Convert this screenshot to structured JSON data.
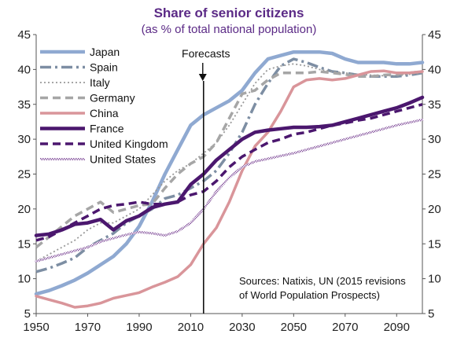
{
  "chart_data": {
    "type": "line",
    "title": "Share of senior citizens",
    "subtitle": "(as % of total national population)",
    "xlabel": "",
    "ylabel": "",
    "xlim": [
      1950,
      2100
    ],
    "ylim": [
      5,
      45
    ],
    "x_ticks": [
      1950,
      1970,
      1990,
      2010,
      2030,
      2050,
      2070,
      2090
    ],
    "y_ticks": [
      5,
      10,
      15,
      20,
      25,
      30,
      35,
      40,
      45
    ],
    "grid": false,
    "legend_position": "top-left",
    "forecast_marker": {
      "label": "Forecasts",
      "x": 2015
    },
    "note_lines": [
      "Sources: Natixis, UN (2015 revisions",
      "of World Population Prospects)"
    ],
    "series": [
      {
        "name": "Japan",
        "color": "#8fa9d1",
        "style": "solid",
        "width": 4.5,
        "points": [
          [
            1950,
            7.8
          ],
          [
            1955,
            8.3
          ],
          [
            1960,
            9
          ],
          [
            1965,
            9.8
          ],
          [
            1970,
            10.8
          ],
          [
            1975,
            12
          ],
          [
            1980,
            13.2
          ],
          [
            1985,
            15
          ],
          [
            1990,
            17.5
          ],
          [
            1995,
            21
          ],
          [
            2000,
            25
          ],
          [
            2005,
            28.5
          ],
          [
            2010,
            32
          ],
          [
            2015,
            33.5
          ],
          [
            2020,
            34.5
          ],
          [
            2025,
            35.5
          ],
          [
            2030,
            37
          ],
          [
            2035,
            39.5
          ],
          [
            2040,
            41.5
          ],
          [
            2045,
            42
          ],
          [
            2050,
            42.5
          ],
          [
            2055,
            42.5
          ],
          [
            2060,
            42.5
          ],
          [
            2065,
            42.3
          ],
          [
            2070,
            41.5
          ],
          [
            2075,
            41
          ],
          [
            2080,
            41
          ],
          [
            2085,
            41
          ],
          [
            2090,
            40.8
          ],
          [
            2095,
            40.8
          ],
          [
            2100,
            41
          ]
        ]
      },
      {
        "name": "Spain",
        "color": "#7d8ea3",
        "style": "dashdot",
        "width": 3.5,
        "points": [
          [
            1950,
            11
          ],
          [
            1955,
            11.5
          ],
          [
            1960,
            12.2
          ],
          [
            1965,
            13
          ],
          [
            1970,
            14.5
          ],
          [
            1975,
            15.5
          ],
          [
            1980,
            16.5
          ],
          [
            1985,
            18
          ],
          [
            1990,
            19
          ],
          [
            1995,
            20
          ],
          [
            2000,
            21.5
          ],
          [
            2005,
            22
          ],
          [
            2010,
            23
          ],
          [
            2015,
            24
          ],
          [
            2020,
            25.5
          ],
          [
            2025,
            28
          ],
          [
            2030,
            31
          ],
          [
            2035,
            35
          ],
          [
            2040,
            38
          ],
          [
            2045,
            40.5
          ],
          [
            2050,
            41.5
          ],
          [
            2055,
            41
          ],
          [
            2060,
            40.3
          ],
          [
            2065,
            39.7
          ],
          [
            2070,
            39.5
          ],
          [
            2075,
            39.2
          ],
          [
            2080,
            39
          ],
          [
            2085,
            39
          ],
          [
            2090,
            39
          ],
          [
            2095,
            39.2
          ],
          [
            2100,
            39.5
          ]
        ]
      },
      {
        "name": "Italy",
        "color": "#999999",
        "style": "dotted",
        "width": 1.8,
        "points": [
          [
            1950,
            12.5
          ],
          [
            1955,
            13.5
          ],
          [
            1960,
            14.5
          ],
          [
            1965,
            15.5
          ],
          [
            1970,
            17
          ],
          [
            1975,
            18
          ],
          [
            1980,
            18
          ],
          [
            1985,
            19
          ],
          [
            1990,
            20
          ],
          [
            1995,
            22
          ],
          [
            2000,
            24
          ],
          [
            2005,
            25.5
          ],
          [
            2010,
            26.5
          ],
          [
            2015,
            28
          ],
          [
            2020,
            29.5
          ],
          [
            2025,
            32
          ],
          [
            2030,
            35
          ],
          [
            2035,
            38
          ],
          [
            2040,
            40
          ],
          [
            2045,
            40.5
          ],
          [
            2050,
            40.8
          ],
          [
            2055,
            40.5
          ],
          [
            2060,
            40
          ],
          [
            2065,
            39.7
          ],
          [
            2070,
            39.5
          ],
          [
            2075,
            39.3
          ],
          [
            2080,
            39.2
          ],
          [
            2085,
            39.1
          ],
          [
            2090,
            39.1
          ],
          [
            2095,
            39.3
          ],
          [
            2100,
            39.5
          ]
        ]
      },
      {
        "name": "Germany",
        "color": "#a6a6a6",
        "style": "dashed",
        "width": 3.5,
        "points": [
          [
            1950,
            14.5
          ],
          [
            1955,
            16
          ],
          [
            1960,
            17.5
          ],
          [
            1965,
            19
          ],
          [
            1970,
            20
          ],
          [
            1975,
            21
          ],
          [
            1980,
            19.5
          ],
          [
            1985,
            20
          ],
          [
            1990,
            20.5
          ],
          [
            1995,
            20.7
          ],
          [
            2000,
            23
          ],
          [
            2005,
            25
          ],
          [
            2010,
            26.5
          ],
          [
            2015,
            27.5
          ],
          [
            2020,
            29.5
          ],
          [
            2025,
            33
          ],
          [
            2030,
            36.5
          ],
          [
            2035,
            37
          ],
          [
            2040,
            38.5
          ],
          [
            2045,
            39.5
          ],
          [
            2050,
            39.5
          ],
          [
            2055,
            39.5
          ],
          [
            2060,
            39.7
          ],
          [
            2065,
            39.5
          ],
          [
            2070,
            39.3
          ],
          [
            2075,
            39
          ],
          [
            2080,
            39
          ],
          [
            2085,
            39.2
          ],
          [
            2090,
            39.3
          ],
          [
            2095,
            39.5
          ],
          [
            2100,
            39.7
          ]
        ]
      },
      {
        "name": "China",
        "color": "#d9959a",
        "style": "solid",
        "width": 3.5,
        "points": [
          [
            1950,
            7.5
          ],
          [
            1955,
            7
          ],
          [
            1960,
            6.5
          ],
          [
            1965,
            5.9
          ],
          [
            1970,
            6.1
          ],
          [
            1975,
            6.5
          ],
          [
            1980,
            7.2
          ],
          [
            1985,
            7.6
          ],
          [
            1990,
            8
          ],
          [
            1995,
            8.8
          ],
          [
            2000,
            9.5
          ],
          [
            2005,
            10.3
          ],
          [
            2010,
            12
          ],
          [
            2015,
            15
          ],
          [
            2020,
            17.3
          ],
          [
            2025,
            21
          ],
          [
            2030,
            25.5
          ],
          [
            2035,
            29
          ],
          [
            2040,
            31
          ],
          [
            2045,
            34
          ],
          [
            2050,
            37.5
          ],
          [
            2055,
            38.5
          ],
          [
            2060,
            38.7
          ],
          [
            2065,
            38.5
          ],
          [
            2070,
            38.7
          ],
          [
            2075,
            39.2
          ],
          [
            2080,
            39.7
          ],
          [
            2085,
            39.8
          ],
          [
            2090,
            39.5
          ],
          [
            2095,
            39.5
          ],
          [
            2100,
            39.7
          ]
        ]
      },
      {
        "name": "France",
        "color": "#4b176e",
        "style": "solid",
        "width": 4.5,
        "points": [
          [
            1950,
            16.2
          ],
          [
            1955,
            16.4
          ],
          [
            1960,
            17
          ],
          [
            1965,
            17.8
          ],
          [
            1970,
            18
          ],
          [
            1975,
            18.5
          ],
          [
            1980,
            17
          ],
          [
            1985,
            18.3
          ],
          [
            1990,
            19
          ],
          [
            1995,
            20.2
          ],
          [
            2000,
            20.7
          ],
          [
            2005,
            21
          ],
          [
            2010,
            23.5
          ],
          [
            2015,
            25
          ],
          [
            2020,
            27
          ],
          [
            2025,
            28.5
          ],
          [
            2030,
            30
          ],
          [
            2035,
            31
          ],
          [
            2040,
            31.3
          ],
          [
            2045,
            31.5
          ],
          [
            2050,
            31.7
          ],
          [
            2055,
            31.7
          ],
          [
            2060,
            31.8
          ],
          [
            2065,
            32
          ],
          [
            2070,
            32.5
          ],
          [
            2075,
            33
          ],
          [
            2080,
            33.5
          ],
          [
            2085,
            34
          ],
          [
            2090,
            34.5
          ],
          [
            2095,
            35.2
          ],
          [
            2100,
            36
          ]
        ]
      },
      {
        "name": "United Kingdom",
        "color": "#4b176e",
        "style": "dashed",
        "width": 3.5,
        "points": [
          [
            1950,
            15.5
          ],
          [
            1955,
            16
          ],
          [
            1960,
            17
          ],
          [
            1965,
            18
          ],
          [
            1970,
            19
          ],
          [
            1975,
            20
          ],
          [
            1980,
            20.5
          ],
          [
            1985,
            20.7
          ],
          [
            1990,
            21
          ],
          [
            1995,
            20.7
          ],
          [
            2000,
            20.7
          ],
          [
            2005,
            21
          ],
          [
            2010,
            22
          ],
          [
            2015,
            22.5
          ],
          [
            2020,
            24
          ],
          [
            2025,
            26
          ],
          [
            2030,
            27.5
          ],
          [
            2035,
            28.5
          ],
          [
            2040,
            29.5
          ],
          [
            2045,
            30
          ],
          [
            2050,
            30.7
          ],
          [
            2055,
            31
          ],
          [
            2060,
            31.5
          ],
          [
            2065,
            32
          ],
          [
            2070,
            32.3
          ],
          [
            2075,
            32.7
          ],
          [
            2080,
            33
          ],
          [
            2085,
            33.5
          ],
          [
            2090,
            34
          ],
          [
            2095,
            34.5
          ],
          [
            2100,
            35
          ]
        ]
      },
      {
        "name": "United States",
        "color": "#8a5aa0",
        "style": "hatched",
        "width": 3,
        "points": [
          [
            1950,
            12.5
          ],
          [
            1955,
            13
          ],
          [
            1960,
            13.5
          ],
          [
            1965,
            14
          ],
          [
            1970,
            14.5
          ],
          [
            1975,
            15.3
          ],
          [
            1980,
            15.8
          ],
          [
            1985,
            16.3
          ],
          [
            1990,
            16.7
          ],
          [
            1995,
            16.5
          ],
          [
            2000,
            16.2
          ],
          [
            2005,
            16.8
          ],
          [
            2010,
            18
          ],
          [
            2015,
            20
          ],
          [
            2020,
            22.5
          ],
          [
            2025,
            24.5
          ],
          [
            2030,
            26
          ],
          [
            2035,
            26.8
          ],
          [
            2040,
            27.2
          ],
          [
            2045,
            27.6
          ],
          [
            2050,
            28
          ],
          [
            2055,
            28.5
          ],
          [
            2060,
            29
          ],
          [
            2065,
            29.5
          ],
          [
            2070,
            30
          ],
          [
            2075,
            30.5
          ],
          [
            2080,
            31
          ],
          [
            2085,
            31.5
          ],
          [
            2090,
            32
          ],
          [
            2095,
            32.4
          ],
          [
            2100,
            32.8
          ]
        ]
      }
    ]
  }
}
